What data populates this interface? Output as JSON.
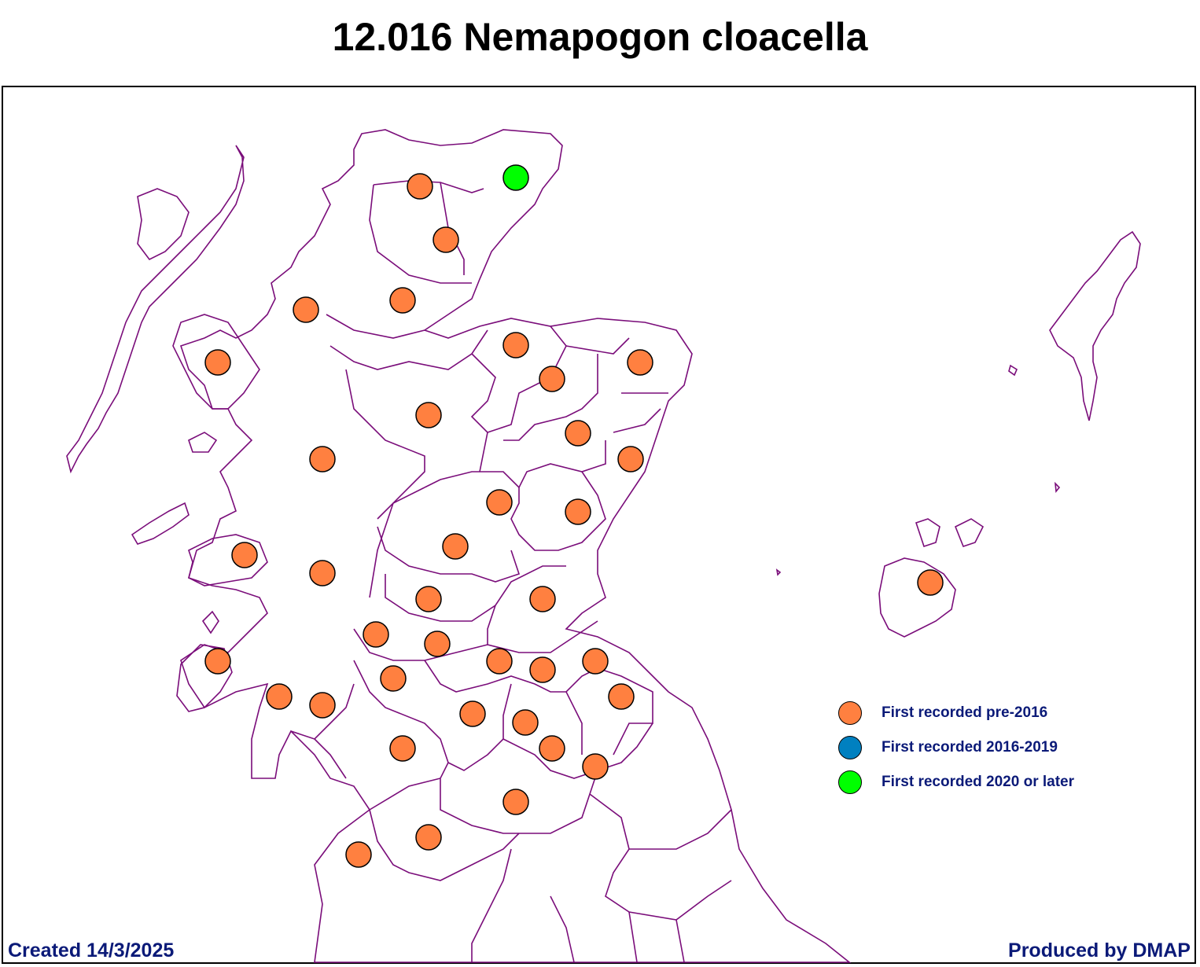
{
  "title": "12.016 Nemapogon cloacella",
  "footer": {
    "created": "Created 14/3/2025",
    "produced": "Produced by DMAP"
  },
  "colors": {
    "boundary": "#7a0d7a",
    "pre2016": "#ff8040",
    "y2016_2019": "#0080c0",
    "y2020_later": "#00ff00",
    "text_navy": "#0b1a78"
  },
  "legend": [
    {
      "label": "First recorded pre-2016",
      "color": "#ff8040"
    },
    {
      "label": "First recorded 2016-2019",
      "color": "#0080c0"
    },
    {
      "label": "First recorded 2020 or later",
      "color": "#00ff00"
    }
  ],
  "records": [
    {
      "category": "2020-later",
      "count": 1
    },
    {
      "category": "pre-2016",
      "count": 39
    }
  ]
}
